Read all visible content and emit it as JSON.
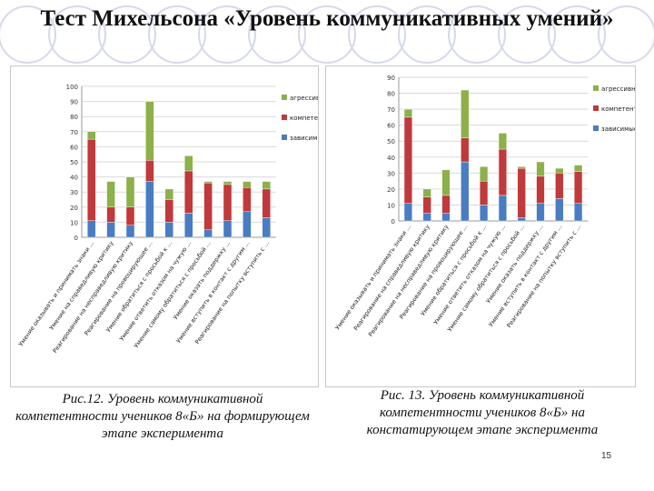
{
  "slide": {
    "title": "Тест Михельсона «Уровень коммуникативных умений»",
    "caption_left": "Рис.12. Уровень коммуникативной компетентности учеников 8«Б» на формирующем этапе эксперимента",
    "caption_right": "Рис. 13. Уровень коммуникативной компетентности учеников 8«Б» на констатирующем этапе эксперимента",
    "page_number": "15"
  },
  "colors": {
    "aggressive": "#8db04a",
    "competent": "#c0393b",
    "dependent": "#4a7cc2",
    "grid": "#d9d9d9",
    "circle": "#d5d9ea"
  },
  "chart_data": [
    {
      "type": "bar",
      "stacked": true,
      "title": "",
      "ylim": [
        0,
        100
      ],
      "yticks": [
        0,
        10,
        20,
        30,
        40,
        50,
        60,
        70,
        80,
        90,
        100
      ],
      "grid": true,
      "legend_position": "right",
      "categories": [
        "Умение оказывать и принимать знаки ...",
        "Умение на справедливую критику",
        "Реагирование на несправедливую критику",
        "Реагирование на провоцирующее ...",
        "Умение обратиться с просьбой к ...",
        "Умение ответить отказом на чужую ...",
        "Умение самому обратиться с просьбой ...",
        "Умение оказать поддержку ...",
        "Умение вступить в контакт с другим ...",
        "Реагирование на попытку вступить с ..."
      ],
      "series": [
        {
          "name": "зависимые",
          "color_key": "dependent",
          "values": [
            11,
            10,
            8,
            37,
            10,
            16,
            5,
            11,
            17,
            13
          ]
        },
        {
          "name": "компетентные",
          "color_key": "competent",
          "values": [
            54,
            10,
            12,
            14,
            15,
            28,
            31,
            24,
            16,
            19
          ]
        },
        {
          "name": "агрессивные",
          "color_key": "aggressive",
          "values": [
            5,
            17,
            20,
            39,
            7,
            10,
            1,
            2,
            4,
            5
          ]
        }
      ]
    },
    {
      "type": "bar",
      "stacked": true,
      "title": "",
      "ylim": [
        0,
        90
      ],
      "yticks": [
        0,
        10,
        20,
        30,
        40,
        50,
        60,
        70,
        80,
        90
      ],
      "grid": true,
      "legend_position": "right",
      "categories": [
        "Умение оказывать и принимать знаки ...",
        "Реагирование на справедливую критику",
        "Реагирование на несправедливую критику",
        "Реагирование на провоцирующее ...",
        "Умение обратиться с просьбой к ...",
        "Умение ответить отказом на чужую ...",
        "Умение самому обратиться с просьбой ...",
        "Умение оказать поддержку ...",
        "Умение вступить в контакт с другим ...",
        "Реагирование на попытку вступить с ..."
      ],
      "series": [
        {
          "name": "зависимые",
          "color_key": "dependent",
          "values": [
            11,
            5,
            5,
            37,
            10,
            16,
            2,
            11,
            14,
            11
          ]
        },
        {
          "name": "компетентные",
          "color_key": "competent",
          "values": [
            54,
            10,
            11,
            15,
            15,
            29,
            31,
            17,
            16,
            20
          ]
        },
        {
          "name": "агрессивные",
          "color_key": "aggressive",
          "values": [
            5,
            5,
            16,
            30,
            9,
            10,
            1,
            9,
            3,
            4
          ]
        }
      ]
    }
  ]
}
